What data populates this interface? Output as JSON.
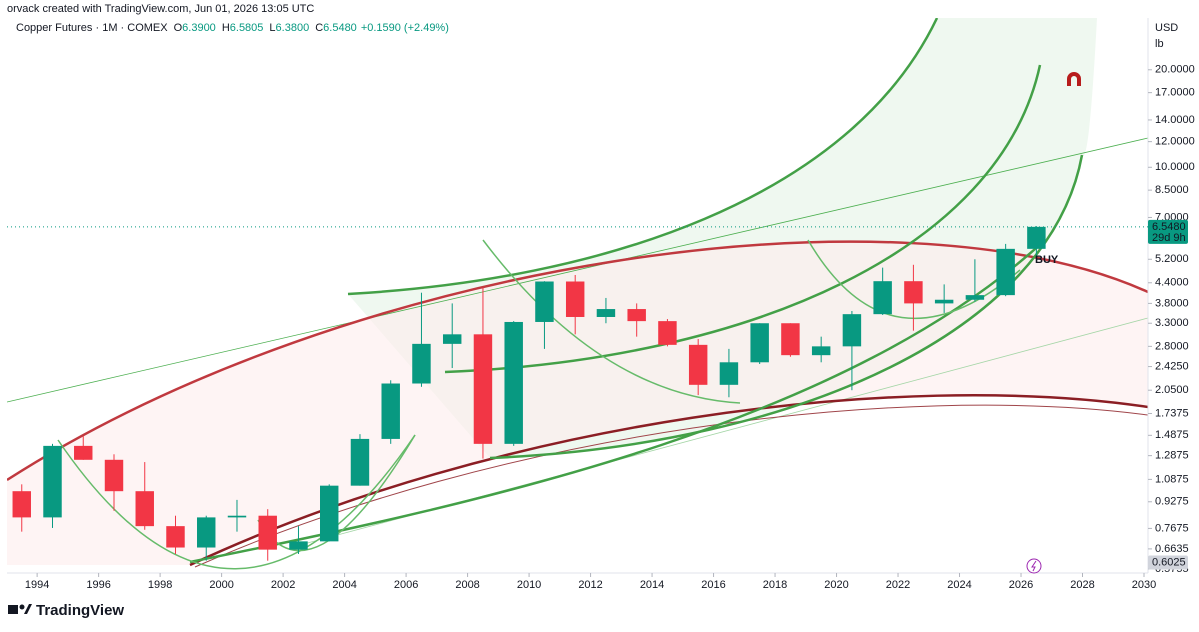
{
  "header": {
    "credit": "orvack created with TradingView.com, Jun 01, 2026 13:05 UTC",
    "logo": "TradingView"
  },
  "chart_data": {
    "type": "candlestick",
    "series": [
      {
        "name": "Copper Futures · 1M · COMEX",
        "up_color": "#089981",
        "down_color": "#f23645"
      }
    ],
    "legend": [
      {
        "key": "O",
        "value": "6.3900"
      },
      {
        "key": "H",
        "value": "6.5805"
      },
      {
        "key": "L",
        "value": "6.3800"
      },
      {
        "key": "C",
        "value": "6.5480"
      }
    ],
    "change": "+0.1590 (+2.49%)",
    "x": [
      1993,
      1994,
      1995,
      1996,
      1997,
      1998,
      1999,
      2000,
      2001,
      2002,
      2003,
      2004,
      2005,
      2006,
      2007,
      2008,
      2009,
      2010,
      2011,
      2012,
      2013,
      2014,
      2015,
      2016,
      2017,
      2018,
      2019,
      2020,
      2021,
      2022,
      2023,
      2024,
      2025,
      2026
    ],
    "open": [
      1.0,
      0.83,
      1.38,
      1.25,
      1.0,
      0.78,
      0.67,
      0.83,
      0.84,
      0.66,
      0.7,
      1.04,
      1.45,
      2.15,
      2.85,
      3.05,
      1.4,
      3.33,
      4.44,
      3.45,
      3.65,
      3.35,
      2.83,
      2.13,
      2.5,
      3.3,
      2.63,
      2.8,
      3.52,
      4.45,
      3.8,
      3.9,
      4.03,
      5.6
    ],
    "high": [
      1.05,
      1.4,
      1.48,
      1.3,
      1.23,
      0.84,
      0.84,
      0.94,
      0.88,
      0.78,
      1.05,
      1.5,
      2.2,
      4.1,
      3.8,
      4.25,
      3.35,
      4.45,
      4.65,
      3.95,
      3.8,
      3.4,
      2.95,
      2.75,
      3.3,
      3.3,
      3.0,
      3.6,
      4.9,
      5.0,
      4.35,
      5.2,
      5.8,
      6.58
    ],
    "low": [
      0.75,
      0.77,
      1.25,
      0.87,
      0.76,
      0.64,
      0.61,
      0.75,
      0.61,
      0.64,
      0.7,
      1.04,
      1.4,
      2.1,
      2.4,
      1.26,
      1.38,
      2.75,
      3.05,
      3.3,
      3.0,
      2.8,
      1.98,
      1.95,
      2.47,
      2.6,
      2.5,
      2.05,
      3.5,
      3.13,
      3.55,
      3.85,
      4.0,
      5.3
    ],
    "close": [
      0.83,
      1.38,
      1.25,
      1.0,
      0.78,
      0.67,
      0.83,
      0.84,
      0.66,
      0.7,
      1.04,
      1.45,
      2.15,
      2.85,
      3.05,
      1.4,
      3.33,
      4.44,
      3.45,
      3.65,
      3.35,
      2.83,
      2.13,
      2.5,
      3.3,
      2.63,
      2.8,
      3.52,
      4.45,
      3.8,
      3.9,
      4.03,
      5.6,
      6.548
    ],
    "xlim": [
      1993.02,
      2030.13
    ],
    "xticks": [
      1994,
      1996,
      1998,
      2000,
      2002,
      2004,
      2006,
      2008,
      2010,
      2012,
      2014,
      2016,
      2018,
      2020,
      2022,
      2024,
      2026,
      2028,
      2030
    ],
    "log_y": true,
    "ylim": [
      0.559,
      28.9
    ],
    "yticks": [
      {
        "value": 0.5755,
        "label": "0.5755"
      },
      {
        "value": 0.6635,
        "label": "0.6635"
      },
      {
        "value": 0.7675,
        "label": "0.7675"
      },
      {
        "value": 0.9275,
        "label": "0.9275"
      },
      {
        "value": 1.0875,
        "label": "1.0875"
      },
      {
        "value": 1.2875,
        "label": "1.2875"
      },
      {
        "value": 1.4875,
        "label": "1.4875"
      },
      {
        "value": 1.7375,
        "label": "1.7375"
      },
      {
        "value": 2.05,
        "label": "2.0500"
      },
      {
        "value": 2.425,
        "label": "2.4250"
      },
      {
        "value": 2.8,
        "label": "2.8000"
      },
      {
        "value": 3.3,
        "label": "3.3000"
      },
      {
        "value": 3.8,
        "label": "3.8000"
      },
      {
        "value": 4.4,
        "label": "4.4000"
      },
      {
        "value": 5.2,
        "label": "5.2000"
      },
      {
        "value": 7,
        "label": "7.0000"
      },
      {
        "value": 8.5,
        "label": "8.5000"
      },
      {
        "value": 10,
        "label": "10.0000"
      },
      {
        "value": 12,
        "label": "12.0000"
      },
      {
        "value": 14,
        "label": "14.0000"
      },
      {
        "value": 17,
        "label": "17.0000"
      },
      {
        "value": 20,
        "label": "20.0000"
      }
    ],
    "currency": "USD",
    "unit": "lb",
    "price_labels": [
      {
        "value": 6.548,
        "label": "6.5480",
        "countdown": "29d 9h",
        "color": "#089981"
      },
      {
        "value": 0.6025,
        "label": "0.6025",
        "color": "#d1d4dc"
      }
    ],
    "annotation": "BUY"
  }
}
